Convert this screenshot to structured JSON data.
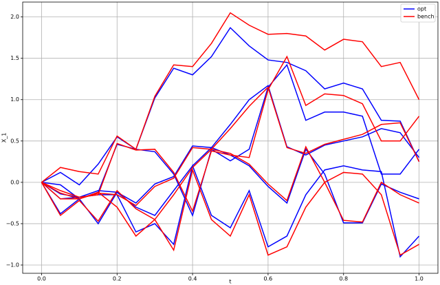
{
  "chart_data": {
    "type": "line",
    "x_label": "t",
    "y_label": "X_1",
    "x": [
      0,
      0.05,
      0.1,
      0.15,
      0.2,
      0.25,
      0.3,
      0.35,
      0.4,
      0.45,
      0.5,
      0.55,
      0.6,
      0.65,
      0.7,
      0.75,
      0.8,
      0.85,
      0.9,
      0.95,
      1.0
    ],
    "series": [
      {
        "name": "opt",
        "color": "#0000ff",
        "values": [
          [
            0,
            0.12,
            -0.03,
            0.22,
            0.55,
            0.4,
            1.02,
            1.38,
            1.3,
            1.52,
            1.87,
            1.65,
            1.48,
            1.45,
            1.35,
            1.13,
            1.2,
            1.13,
            0.75,
            0.74,
            0.25
          ],
          [
            0,
            -0.03,
            -0.2,
            -0.12,
            0.46,
            0.4,
            0.37,
            0.1,
            -0.4,
            0.4,
            0.26,
            0.4,
            1.15,
            1.42,
            0.75,
            0.85,
            0.85,
            0.8,
            0.1,
            0.1,
            0.4
          ],
          [
            0,
            -0.38,
            -0.2,
            -0.5,
            -0.12,
            -0.3,
            -0.4,
            -0.1,
            0.2,
            0.42,
            0.7,
            1.0,
            1.17,
            0.43,
            0.33,
            0.45,
            0.5,
            0.55,
            0.65,
            0.6,
            0.3
          ],
          [
            0,
            -0.2,
            -0.18,
            -0.1,
            -0.12,
            -0.25,
            -0.02,
            0.07,
            0.44,
            0.42,
            0.33,
            0.2,
            -0.05,
            -0.25,
            0.4,
            0.1,
            -0.49,
            -0.49,
            -0.02,
            -0.12,
            -0.2
          ],
          [
            0,
            -0.14,
            -0.18,
            -0.15,
            -0.15,
            -0.6,
            -0.5,
            -0.75,
            0.2,
            -0.4,
            -0.55,
            -0.1,
            -0.78,
            -0.65,
            -0.15,
            0.15,
            0.2,
            0.15,
            0.13,
            -0.9,
            -0.65
          ]
        ]
      },
      {
        "name": "bench",
        "color": "#ff0000",
        "values": [
          [
            0,
            0.18,
            0.13,
            0.1,
            0.56,
            0.4,
            1.04,
            1.42,
            1.4,
            1.68,
            2.05,
            1.9,
            1.79,
            1.8,
            1.77,
            1.6,
            1.73,
            1.7,
            1.4,
            1.45,
            1.0
          ],
          [
            0,
            -0.1,
            -0.18,
            -0.15,
            0.47,
            0.39,
            0.4,
            0.12,
            -0.35,
            0.38,
            0.33,
            0.3,
            1.12,
            1.52,
            0.93,
            1.07,
            1.05,
            0.95,
            0.5,
            0.5,
            0.8
          ],
          [
            0,
            -0.4,
            -0.22,
            -0.47,
            -0.1,
            -0.32,
            -0.45,
            -0.15,
            0.18,
            0.4,
            0.65,
            0.92,
            1.15,
            0.42,
            0.35,
            0.46,
            0.52,
            0.58,
            0.7,
            0.72,
            0.25
          ],
          [
            0,
            -0.2,
            -0.2,
            -0.13,
            -0.15,
            -0.28,
            -0.05,
            0.05,
            0.42,
            0.4,
            0.35,
            0.22,
            -0.02,
            -0.22,
            0.43,
            0.0,
            -0.46,
            -0.48,
            0.0,
            -0.15,
            -0.25
          ],
          [
            0,
            -0.13,
            -0.2,
            -0.12,
            -0.3,
            -0.65,
            -0.45,
            -0.82,
            0.15,
            -0.45,
            -0.65,
            -0.15,
            -0.88,
            -0.78,
            -0.3,
            0.0,
            0.12,
            0.1,
            -0.15,
            -0.88,
            -0.75
          ]
        ]
      }
    ],
    "xlim": [
      -0.05,
      1.05
    ],
    "ylim": [
      -1.1,
      2.18
    ],
    "xticks": [
      {
        "value": 0,
        "label": "0.0"
      },
      {
        "value": 0.2,
        "label": "0.2"
      },
      {
        "value": 0.4,
        "label": "0.4"
      },
      {
        "value": 0.6,
        "label": "0.6"
      },
      {
        "value": 0.8,
        "label": "0.8"
      },
      {
        "value": 1.0,
        "label": "1.0"
      }
    ],
    "yticks": [
      {
        "value": -1,
        "label": "−1.0"
      },
      {
        "value": -0.5,
        "label": "−0.5"
      },
      {
        "value": 0,
        "label": "0.0"
      },
      {
        "value": 0.5,
        "label": "0.5"
      },
      {
        "value": 1,
        "label": "1.0"
      },
      {
        "value": 1.5,
        "label": "1.5"
      },
      {
        "value": 2,
        "label": "2.0"
      }
    ],
    "grid": true,
    "legend": "upper right"
  }
}
